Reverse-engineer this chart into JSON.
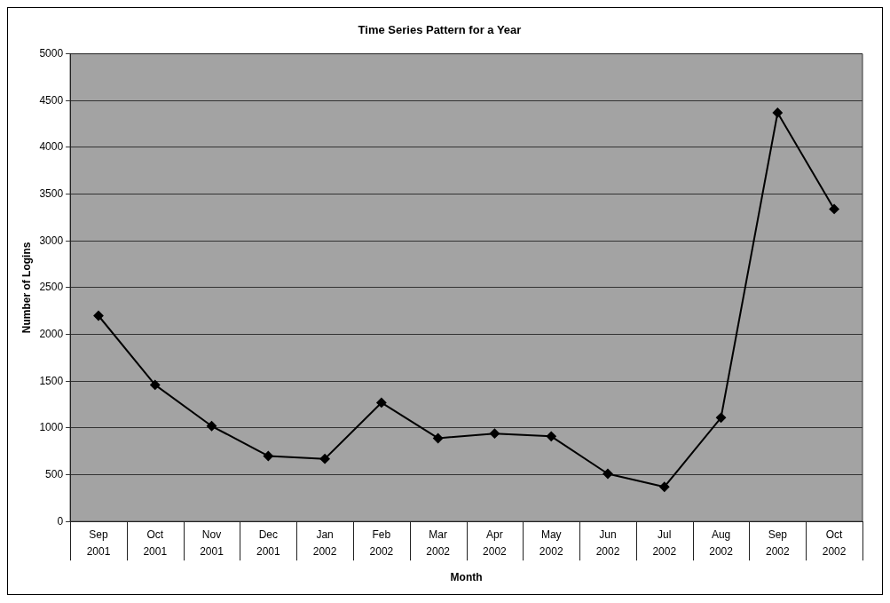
{
  "chart_data": {
    "type": "line",
    "title": "Time Series Pattern for a Year",
    "xlabel": "Month",
    "ylabel": "Number of Logins",
    "categories": [
      "Sep 2001",
      "Oct 2001",
      "Nov 2001",
      "Dec 2001",
      "Jan 2002",
      "Feb 2002",
      "Mar 2002",
      "Apr 2002",
      "May 2002",
      "Jun 2002",
      "Jul 2002",
      "Aug 2002",
      "Sep 2002",
      "Oct 2002"
    ],
    "series": [
      {
        "color": "#000000",
        "values": [
          2200,
          1460,
          1020,
          700,
          670,
          1270,
          890,
          940,
          910,
          510,
          370,
          1110,
          4370,
          3340
        ]
      }
    ],
    "ylim": [
      0,
      5000
    ],
    "yticks": [
      0,
      500,
      1000,
      1500,
      2000,
      2500,
      3000,
      3500,
      4000,
      4500,
      5000
    ],
    "grid": "y",
    "legend": false,
    "marker": "diamond",
    "line_style": "solid"
  }
}
